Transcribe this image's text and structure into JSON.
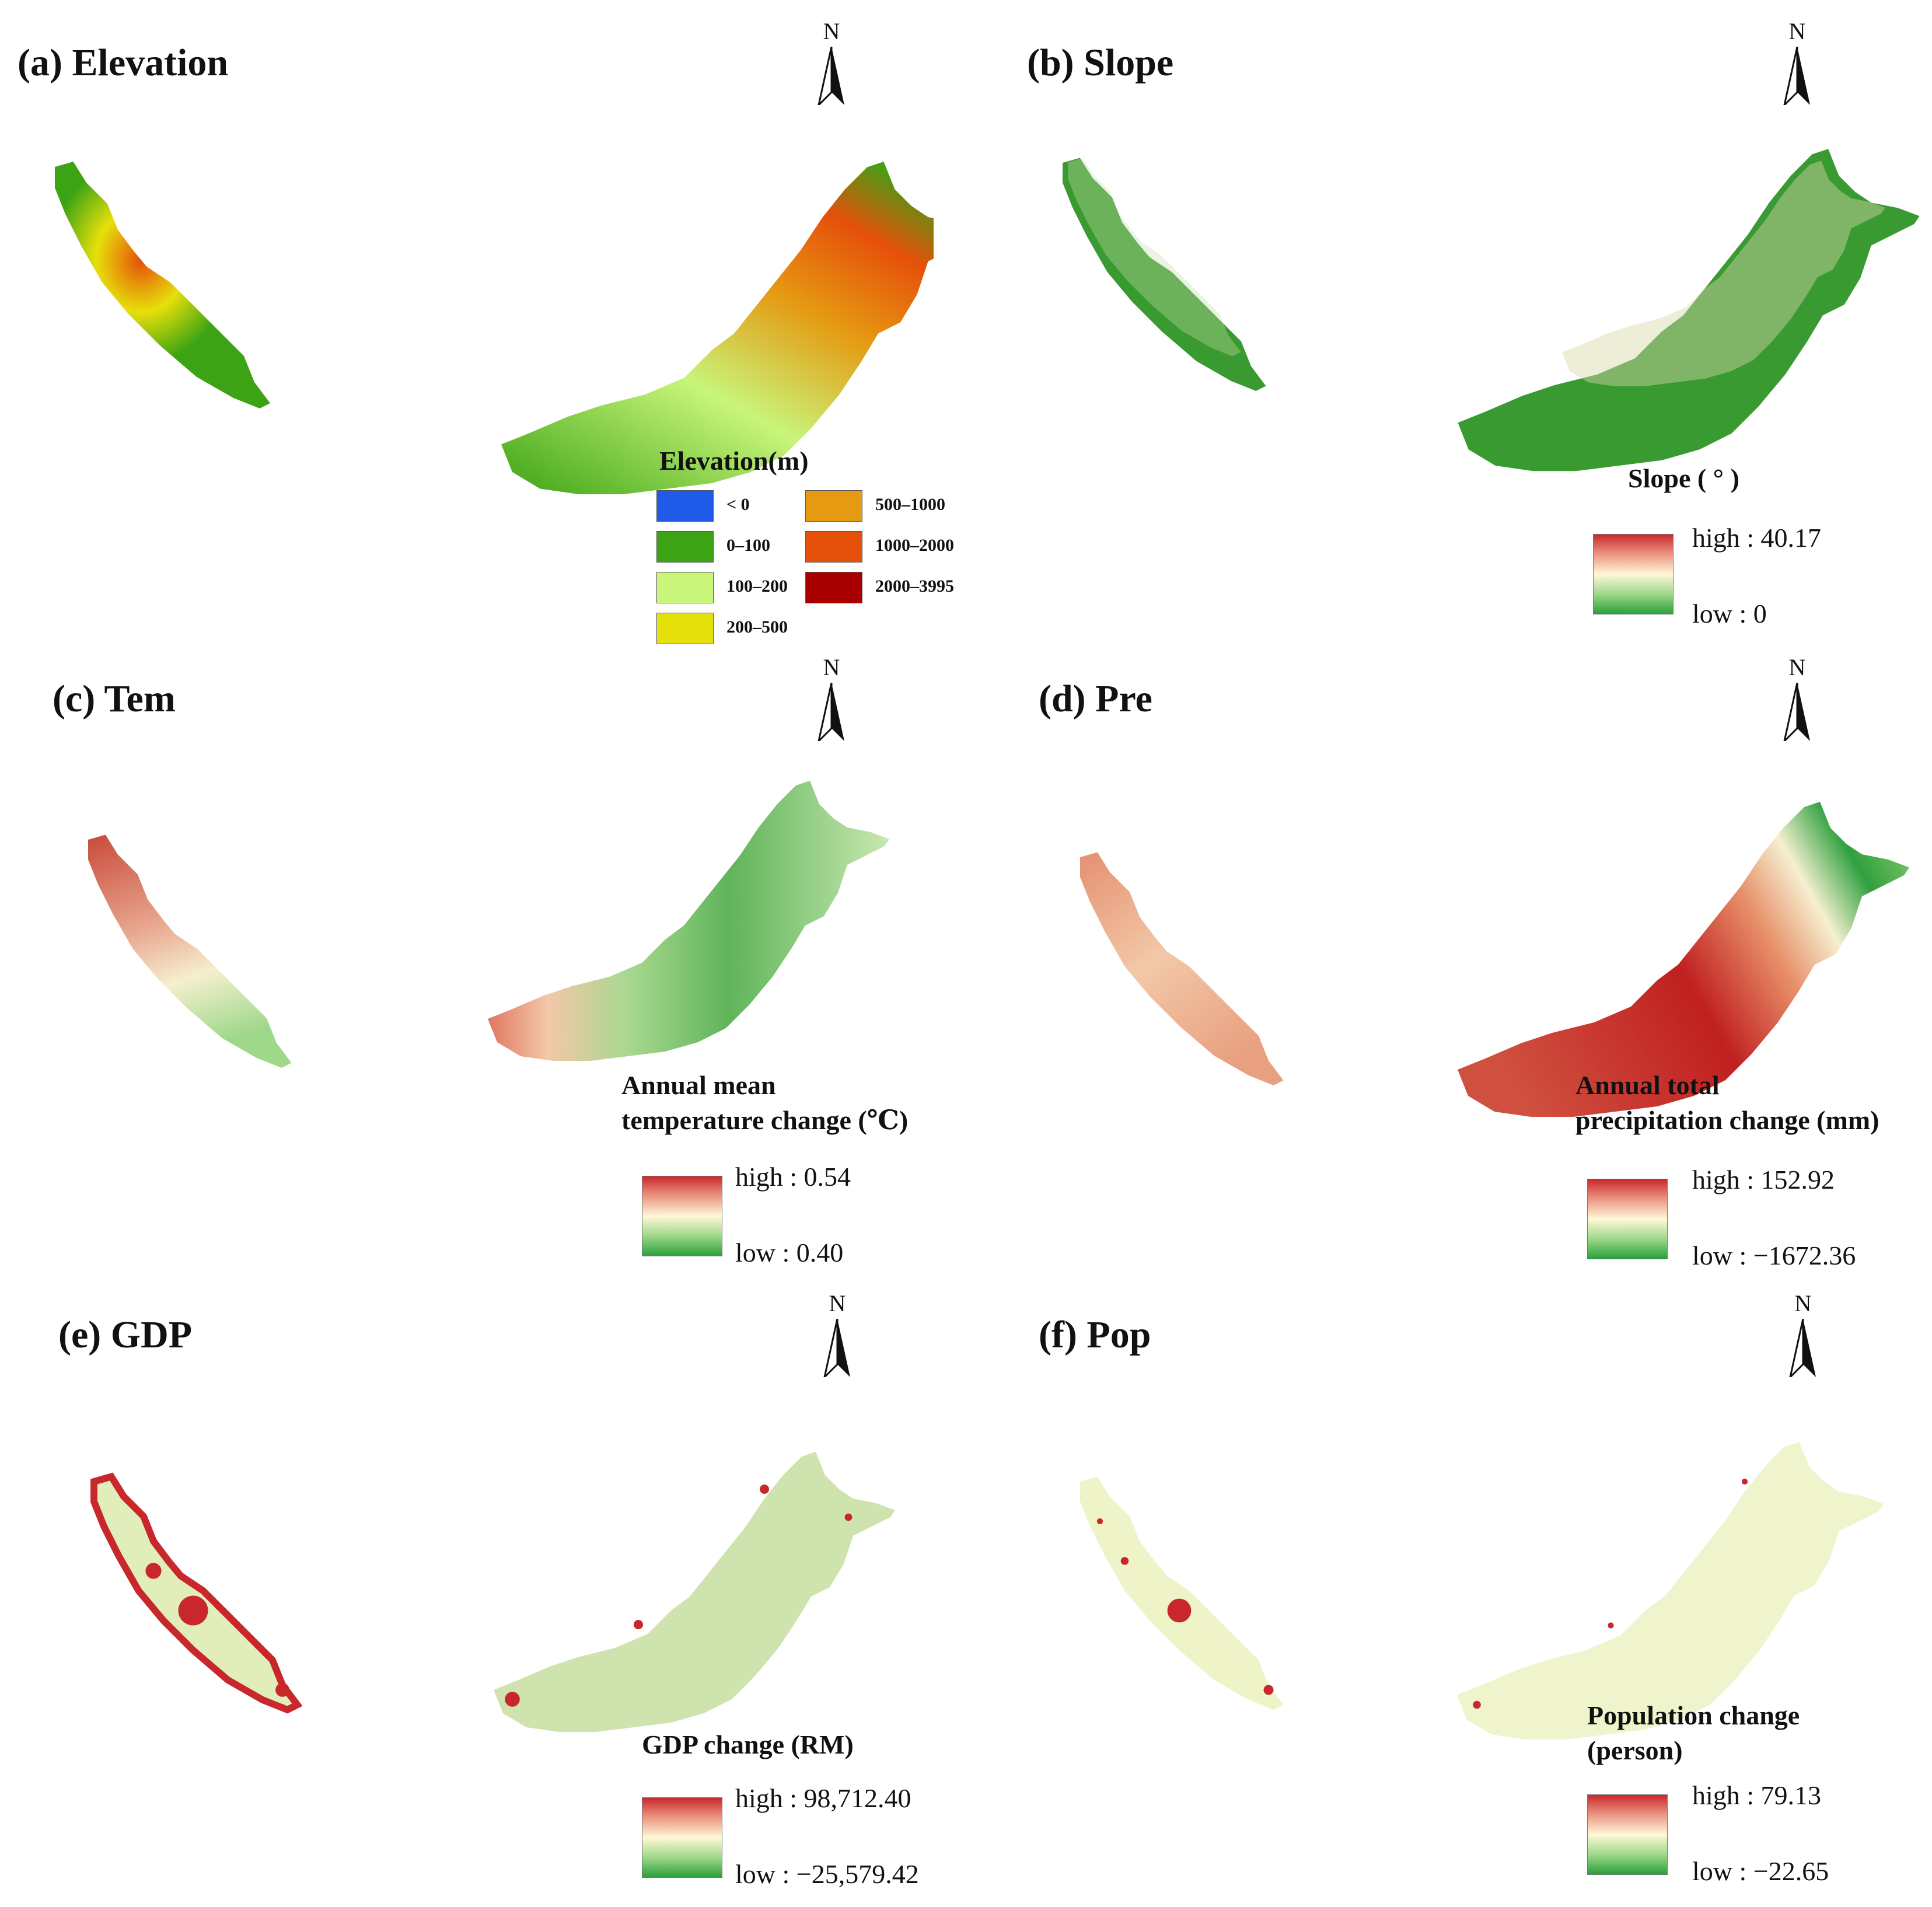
{
  "north_label": "N",
  "panels": {
    "a": {
      "title": "(a) Elevation",
      "legend_title": "Elevation(m)",
      "classes": [
        {
          "label": "< 0",
          "color": "#1f5be8"
        },
        {
          "label": "0–100",
          "color": "#3ca314"
        },
        {
          "label": "100–200",
          "color": "#c8f57a"
        },
        {
          "label": "200–500",
          "color": "#e6e00a"
        },
        {
          "label": "500–1000",
          "color": "#e59a12"
        },
        {
          "label": "1000–2000",
          "color": "#e5500a"
        },
        {
          "label": "2000–3995",
          "color": "#a80000"
        }
      ]
    },
    "b": {
      "title": "(b) Slope",
      "legend_title": "Slope ( ° )",
      "high": "high : 40.17",
      "low": "low : 0"
    },
    "c": {
      "title": "(c) Tem",
      "legend_title_1": "Annual mean",
      "legend_title_2": "temperature change (℃)",
      "high": "high : 0.54",
      "low": "low : 0.40"
    },
    "d": {
      "title": "(d) Pre",
      "legend_title_1": "Annual total",
      "legend_title_2": "precipitation change (mm)",
      "high": "high : 152.92",
      "low": "low : −1672.36"
    },
    "e": {
      "title": "(e) GDP",
      "legend_title": "GDP change (RM)",
      "high": "high : 98,712.40",
      "low": "low : −25,579.42"
    },
    "f": {
      "title": "(f) Pop",
      "legend_title_1": "Population change",
      "legend_title_2": "(person)",
      "high": "high : 79.13",
      "low": "low : −22.65"
    }
  },
  "colors": {
    "elev_low": "#3ca314",
    "elev_mid": "#e6e00a",
    "elev_high": "#e5500a",
    "slope_base": "#3a9a32",
    "red": "#c8282c",
    "pale": "#eaf3c0"
  }
}
